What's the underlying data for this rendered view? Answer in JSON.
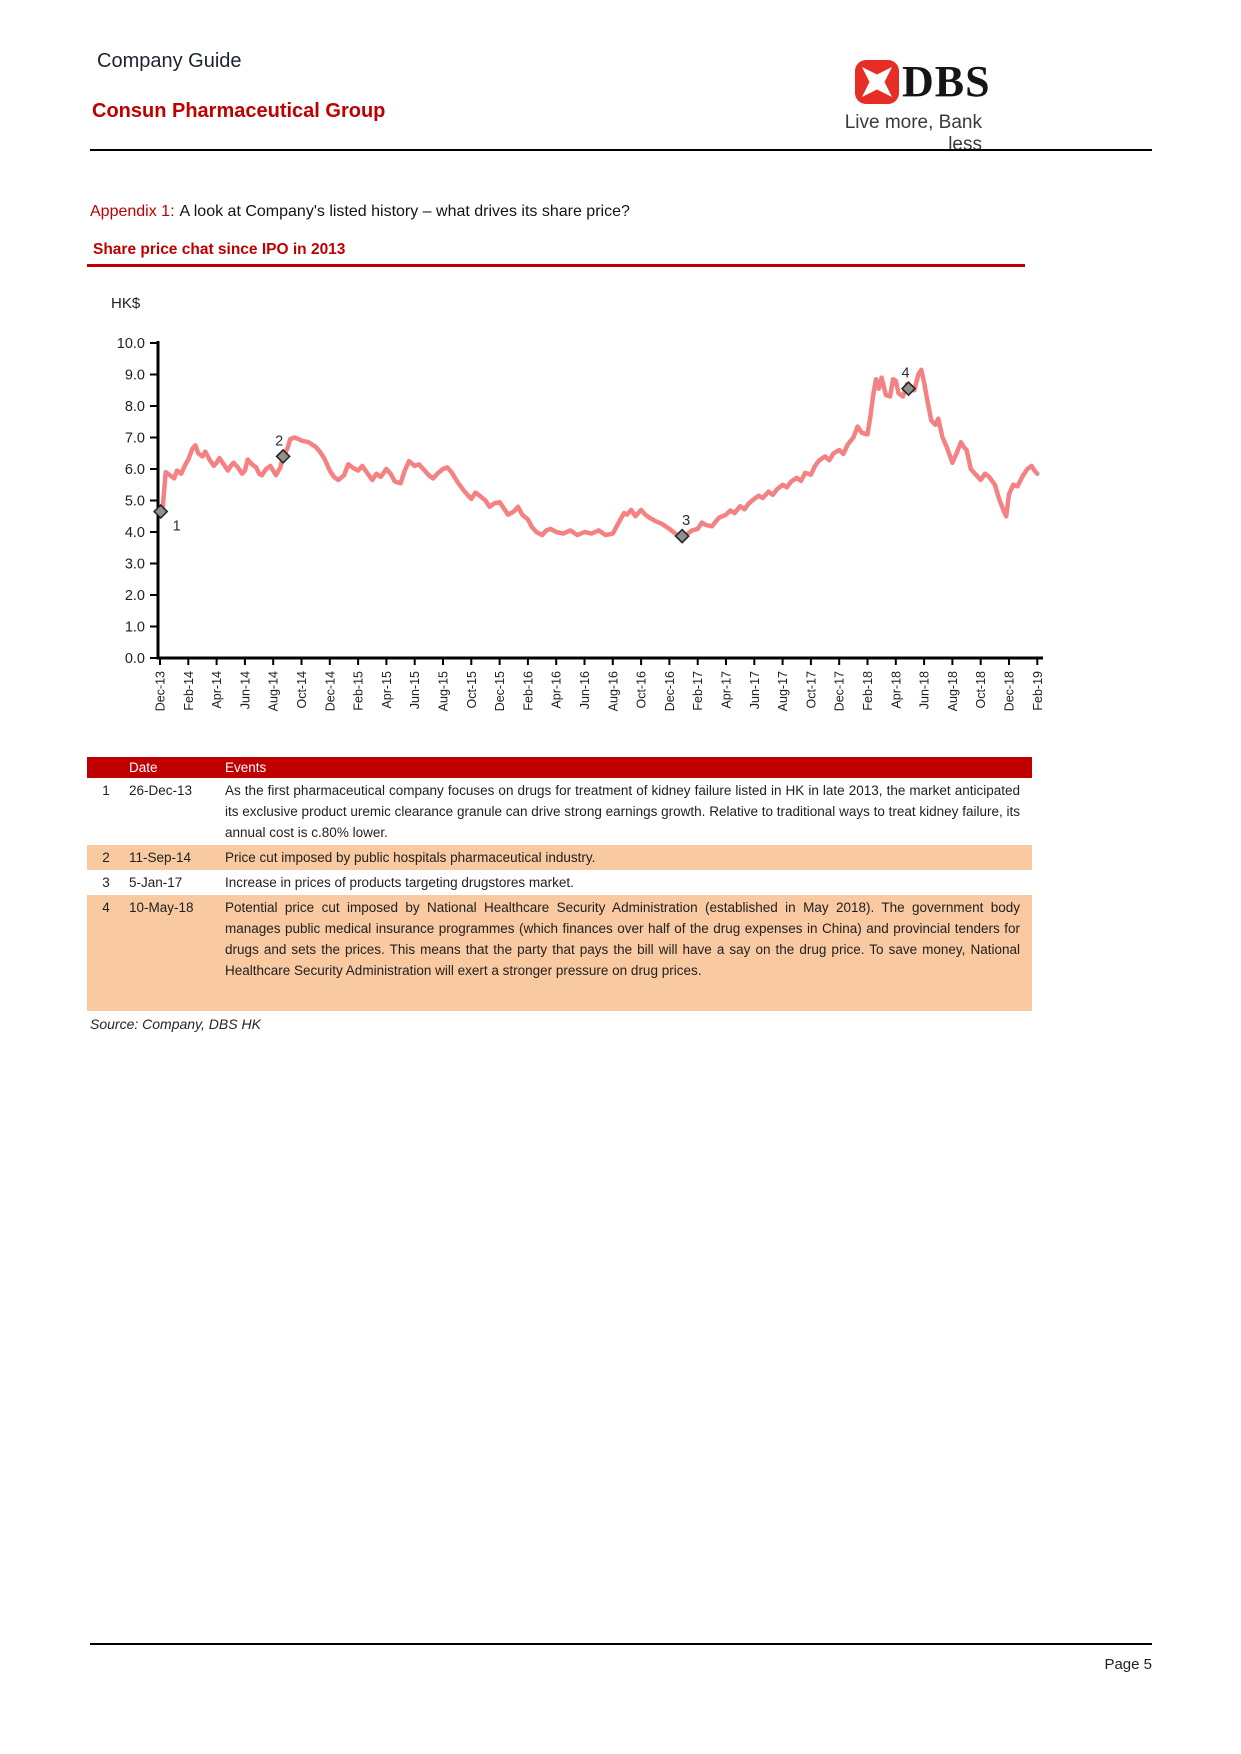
{
  "header": {
    "doc_type": "Company Guide",
    "company": "Consun Pharmaceutical Group",
    "logo": {
      "brand": "DBS",
      "tagline": "Live more, Bank less",
      "brand_red": "#e62d26"
    }
  },
  "appendix": {
    "label": "Appendix 1:",
    "title": "A look at Company's listed history – what drives its share price?"
  },
  "chart": {
    "title": "Share price chat since IPO in 2013",
    "unit_label": "HK$"
  },
  "chart_data": {
    "type": "line",
    "title": "Share price chat since IPO in 2013",
    "ylabel": "HK$",
    "ylim": [
      0,
      10
    ],
    "yticks": [
      0,
      1,
      2,
      3,
      4,
      5,
      6,
      7,
      8,
      9,
      10
    ],
    "x_unit": "months since Dec-13",
    "x_range_months": [
      0,
      62
    ],
    "xtick_step_months": 2,
    "xtick_labels": [
      "Dec-13",
      "Feb-14",
      "Apr-14",
      "Jun-14",
      "Aug-14",
      "Oct-14",
      "Dec-14",
      "Feb-15",
      "Apr-15",
      "Jun-15",
      "Aug-15",
      "Oct-15",
      "Dec-15",
      "Feb-16",
      "Apr-16",
      "Jun-16",
      "Aug-16",
      "Oct-16",
      "Dec-16",
      "Feb-17",
      "Apr-17",
      "Jun-17",
      "Aug-17",
      "Oct-17",
      "Dec-17",
      "Feb-18",
      "Apr-18",
      "Jun-18",
      "Aug-18",
      "Oct-18",
      "Dec-18",
      "Feb-19"
    ],
    "grid": false,
    "legend": "none",
    "line_color": "#f48282",
    "marker_fill": "#909090",
    "marker_stroke": "#262626",
    "series": [
      {
        "name": "Share price (HK$)",
        "points": [
          [
            0,
            4.65
          ],
          [
            0.2,
            4.8
          ],
          [
            0.4,
            5.9
          ],
          [
            0.7,
            5.8
          ],
          [
            1,
            5.7
          ],
          [
            1.2,
            5.95
          ],
          [
            1.5,
            5.85
          ],
          [
            1.8,
            6.15
          ],
          [
            2,
            6.3
          ],
          [
            2.3,
            6.65
          ],
          [
            2.5,
            6.75
          ],
          [
            2.7,
            6.5
          ],
          [
            3,
            6.4
          ],
          [
            3.2,
            6.55
          ],
          [
            3.5,
            6.3
          ],
          [
            3.8,
            6.1
          ],
          [
            4,
            6.2
          ],
          [
            4.2,
            6.35
          ],
          [
            4.5,
            6.15
          ],
          [
            4.8,
            5.95
          ],
          [
            5,
            6.1
          ],
          [
            5.2,
            6.2
          ],
          [
            5.5,
            6.05
          ],
          [
            5.8,
            5.85
          ],
          [
            6,
            5.95
          ],
          [
            6.2,
            6.3
          ],
          [
            6.5,
            6.15
          ],
          [
            6.8,
            6.05
          ],
          [
            7,
            5.85
          ],
          [
            7.2,
            5.8
          ],
          [
            7.5,
            6.0
          ],
          [
            7.8,
            6.1
          ],
          [
            8,
            5.95
          ],
          [
            8.2,
            5.8
          ],
          [
            8.5,
            6.05
          ],
          [
            8.7,
            6.4
          ],
          [
            9,
            6.65
          ],
          [
            9.2,
            6.95
          ],
          [
            9.5,
            7.0
          ],
          [
            9.8,
            6.95
          ],
          [
            10,
            6.9
          ],
          [
            10.5,
            6.85
          ],
          [
            11,
            6.7
          ],
          [
            11.3,
            6.55
          ],
          [
            11.6,
            6.35
          ],
          [
            12,
            5.95
          ],
          [
            12.3,
            5.75
          ],
          [
            12.6,
            5.65
          ],
          [
            13,
            5.8
          ],
          [
            13.3,
            6.15
          ],
          [
            13.6,
            6.05
          ],
          [
            14,
            5.95
          ],
          [
            14.3,
            6.1
          ],
          [
            14.6,
            5.9
          ],
          [
            15,
            5.65
          ],
          [
            15.3,
            5.85
          ],
          [
            15.6,
            5.75
          ],
          [
            16,
            6.0
          ],
          [
            16.3,
            5.85
          ],
          [
            16.6,
            5.6
          ],
          [
            17,
            5.55
          ],
          [
            17.3,
            5.95
          ],
          [
            17.6,
            6.25
          ],
          [
            18,
            6.1
          ],
          [
            18.3,
            6.15
          ],
          [
            18.6,
            6.0
          ],
          [
            19,
            5.8
          ],
          [
            19.3,
            5.7
          ],
          [
            19.6,
            5.85
          ],
          [
            20,
            6.0
          ],
          [
            20.3,
            6.05
          ],
          [
            20.6,
            5.9
          ],
          [
            21,
            5.6
          ],
          [
            21.5,
            5.3
          ],
          [
            22,
            5.05
          ],
          [
            22.3,
            5.25
          ],
          [
            22.6,
            5.15
          ],
          [
            23,
            5.0
          ],
          [
            23.3,
            4.8
          ],
          [
            23.6,
            4.9
          ],
          [
            24,
            4.95
          ],
          [
            24.3,
            4.75
          ],
          [
            24.6,
            4.55
          ],
          [
            25,
            4.65
          ],
          [
            25.3,
            4.8
          ],
          [
            25.6,
            4.55
          ],
          [
            26,
            4.4
          ],
          [
            26.3,
            4.15
          ],
          [
            26.6,
            4.0
          ],
          [
            27,
            3.9
          ],
          [
            27.3,
            4.05
          ],
          [
            27.6,
            4.1
          ],
          [
            28,
            4.0
          ],
          [
            28.5,
            3.95
          ],
          [
            29,
            4.05
          ],
          [
            29.5,
            3.9
          ],
          [
            30,
            4.0
          ],
          [
            30.5,
            3.95
          ],
          [
            31,
            4.05
          ],
          [
            31.5,
            3.9
          ],
          [
            32,
            3.95
          ],
          [
            32.3,
            4.2
          ],
          [
            32.6,
            4.45
          ],
          [
            32.8,
            4.6
          ],
          [
            33,
            4.55
          ],
          [
            33.3,
            4.7
          ],
          [
            33.6,
            4.5
          ],
          [
            34,
            4.7
          ],
          [
            34.3,
            4.55
          ],
          [
            34.6,
            4.45
          ],
          [
            35,
            4.35
          ],
          [
            35.5,
            4.25
          ],
          [
            36,
            4.1
          ],
          [
            36.5,
            3.92
          ],
          [
            37,
            3.87
          ],
          [
            37.3,
            3.95
          ],
          [
            37.6,
            4.05
          ],
          [
            38,
            4.1
          ],
          [
            38.3,
            4.3
          ],
          [
            38.6,
            4.22
          ],
          [
            39,
            4.18
          ],
          [
            39.5,
            4.45
          ],
          [
            40,
            4.55
          ],
          [
            40.3,
            4.68
          ],
          [
            40.6,
            4.6
          ],
          [
            41,
            4.82
          ],
          [
            41.3,
            4.72
          ],
          [
            41.6,
            4.9
          ],
          [
            42,
            5.05
          ],
          [
            42.3,
            5.15
          ],
          [
            42.6,
            5.08
          ],
          [
            43,
            5.28
          ],
          [
            43.3,
            5.18
          ],
          [
            43.6,
            5.35
          ],
          [
            44,
            5.5
          ],
          [
            44.3,
            5.42
          ],
          [
            44.6,
            5.6
          ],
          [
            45,
            5.72
          ],
          [
            45.3,
            5.62
          ],
          [
            45.6,
            5.88
          ],
          [
            46,
            5.82
          ],
          [
            46.3,
            6.1
          ],
          [
            46.6,
            6.28
          ],
          [
            47,
            6.4
          ],
          [
            47.3,
            6.28
          ],
          [
            47.6,
            6.5
          ],
          [
            48,
            6.6
          ],
          [
            48.3,
            6.48
          ],
          [
            48.6,
            6.78
          ],
          [
            49,
            7.0
          ],
          [
            49.3,
            7.35
          ],
          [
            49.6,
            7.15
          ],
          [
            50,
            7.1
          ],
          [
            50.2,
            7.65
          ],
          [
            50.4,
            8.35
          ],
          [
            50.6,
            8.85
          ],
          [
            50.8,
            8.55
          ],
          [
            51,
            8.9
          ],
          [
            51.3,
            8.35
          ],
          [
            51.6,
            8.3
          ],
          [
            51.8,
            8.85
          ],
          [
            52,
            8.8
          ],
          [
            52.2,
            8.4
          ],
          [
            52.5,
            8.3
          ],
          [
            52.8,
            8.7
          ],
          [
            53,
            8.55
          ],
          [
            53.3,
            8.5
          ],
          [
            53.6,
            9.0
          ],
          [
            53.8,
            9.15
          ],
          [
            54,
            8.75
          ],
          [
            54.2,
            8.25
          ],
          [
            54.5,
            7.55
          ],
          [
            54.8,
            7.4
          ],
          [
            55,
            7.6
          ],
          [
            55.3,
            7.0
          ],
          [
            55.6,
            6.7
          ],
          [
            55.8,
            6.45
          ],
          [
            56,
            6.2
          ],
          [
            56.3,
            6.5
          ],
          [
            56.6,
            6.85
          ],
          [
            56.8,
            6.7
          ],
          [
            57,
            6.6
          ],
          [
            57.3,
            6.0
          ],
          [
            57.6,
            5.85
          ],
          [
            58,
            5.65
          ],
          [
            58.3,
            5.85
          ],
          [
            58.6,
            5.75
          ],
          [
            59,
            5.5
          ],
          [
            59.3,
            5.05
          ],
          [
            59.6,
            4.7
          ],
          [
            59.8,
            4.5
          ],
          [
            60,
            5.2
          ],
          [
            60.3,
            5.5
          ],
          [
            60.6,
            5.45
          ],
          [
            61,
            5.8
          ],
          [
            61.3,
            6.0
          ],
          [
            61.6,
            6.1
          ],
          [
            61.8,
            5.95
          ],
          [
            62,
            5.85
          ]
        ]
      }
    ],
    "event_markers": [
      {
        "label": "1",
        "month": 0.05,
        "value": 4.65,
        "date": "26-Dec-13"
      },
      {
        "label": "2",
        "month": 8.7,
        "value": 6.4,
        "date": "11-Sep-14"
      },
      {
        "label": "3",
        "month": 36.9,
        "value": 3.87,
        "date": "5-Jan-17"
      },
      {
        "label": "4",
        "month": 52.9,
        "value": 8.55,
        "date": "10-May-18"
      }
    ]
  },
  "table": {
    "headers": {
      "date": "Date",
      "events": "Events"
    },
    "accent_color": "#c00000",
    "alt_row_color": "#f9c9a1",
    "rows": [
      {
        "no": "1",
        "date": "26-Dec-13",
        "event": "As the first pharmaceutical company focuses on drugs for treatment of kidney failure listed in HK in late 2013, the market anticipated its exclusive product uremic clearance granule can drive strong earnings growth. Relative to traditional ways to treat kidney failure, its annual cost is c.80% lower."
      },
      {
        "no": "2",
        "date": "11-Sep-14",
        "event": "Price cut imposed by public hospitals pharmaceutical industry."
      },
      {
        "no": "3",
        "date": "5-Jan-17",
        "event": "Increase in prices of products targeting drugstores market."
      },
      {
        "no": "4",
        "date": "10-May-18",
        "event": "Potential price cut imposed by National Healthcare Security Administration (established in May 2018). The government body manages public medical insurance programmes (which finances over half of the drug expenses in China) and provincial tenders for drugs and sets the prices. This means that the party that pays the bill will have a say on the drug price. To save money, National Healthcare Security Administration will exert a stronger pressure on drug prices."
      }
    ]
  },
  "source": "Source: Company, DBS HK",
  "footer": {
    "page": "Page 5"
  }
}
